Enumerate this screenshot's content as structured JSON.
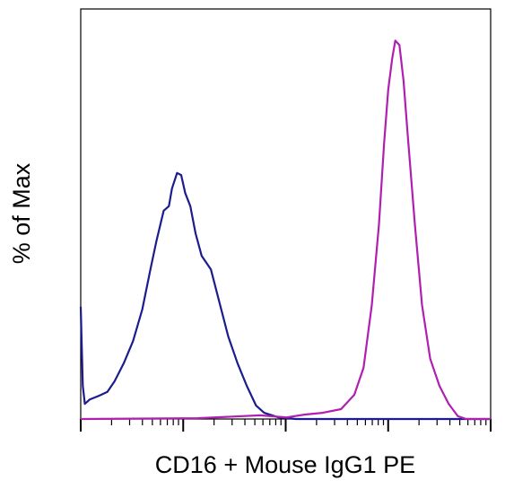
{
  "chart_data": {
    "type": "line",
    "x_label": "CD16 + Mouse IgG1 PE",
    "y_label": "% of Max",
    "xlim": [
      0,
      4
    ],
    "ylim": [
      0,
      100
    ],
    "xticks": [
      0,
      1,
      2,
      3,
      4
    ],
    "xminor_ticks": [
      0.301,
      0.477,
      0.602,
      0.699,
      0.778,
      0.845,
      0.903,
      0.954,
      1.301,
      1.477,
      1.602,
      1.699,
      1.778,
      1.845,
      1.903,
      1.954,
      2.301,
      2.477,
      2.602,
      2.699,
      2.778,
      2.845,
      2.903,
      2.954,
      3.301,
      3.477,
      3.602,
      3.699,
      3.778,
      3.845,
      3.903,
      3.954
    ],
    "series": [
      {
        "color": "#1c1c8e",
        "x": [
          0,
          0.02,
          0.04,
          0.09,
          0.18,
          0.26,
          0.33,
          0.42,
          0.51,
          0.6,
          0.68,
          0.74,
          0.81,
          0.86,
          0.89,
          0.94,
          0.98,
          1.02,
          1.07,
          1.12,
          1.18,
          1.27,
          1.36,
          1.44,
          1.53,
          1.62,
          1.71,
          1.79,
          1.93,
          2.1,
          4
        ],
        "values": [
          27.4,
          8.1,
          3.7,
          4.8,
          5.7,
          6.6,
          9.2,
          13.6,
          19,
          26.7,
          36.5,
          43.5,
          50.8,
          51.9,
          56.2,
          60,
          59.5,
          55.1,
          51.9,
          45.3,
          39.8,
          36.5,
          27.8,
          20.1,
          13.6,
          8.1,
          3.3,
          1.5,
          0.4,
          0,
          0
        ]
      },
      {
        "color": "#b020b0",
        "x": [
          0,
          1.14,
          1.75,
          2.01,
          2.19,
          2.36,
          2.54,
          2.67,
          2.76,
          2.84,
          2.91,
          2.96,
          3.0,
          3.04,
          3.07,
          3.11,
          3.15,
          3.19,
          3.26,
          3.33,
          3.41,
          3.5,
          3.59,
          3.68,
          3.76,
          4
        ],
        "values": [
          0,
          0.2,
          0.9,
          0.4,
          1.1,
          1.5,
          2.4,
          5.9,
          12.5,
          27.8,
          47.5,
          67.2,
          80.3,
          88,
          92.3,
          91.2,
          82.5,
          69.4,
          47.5,
          27.8,
          14.7,
          8.1,
          3.7,
          0.7,
          0,
          0
        ]
      }
    ]
  }
}
